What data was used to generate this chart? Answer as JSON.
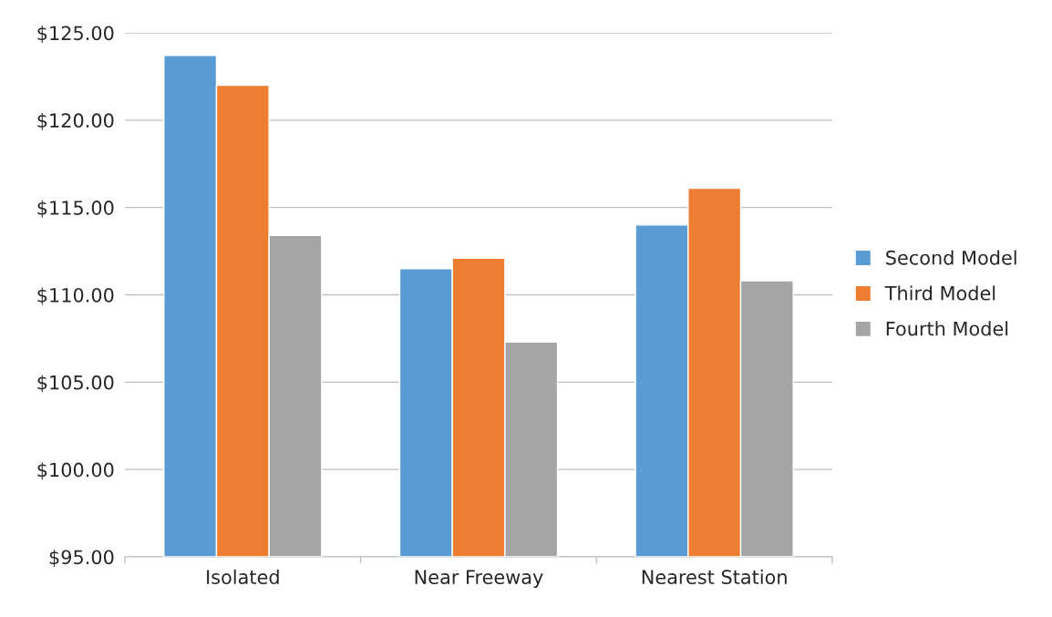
{
  "chart_data": {
    "type": "bar",
    "categories": [
      "Isolated",
      "Near Freeway",
      "Nearest Station"
    ],
    "series": [
      {
        "name": "Second Model",
        "color": "#5b9bd5",
        "values": [
          123.7,
          111.5,
          114.0
        ]
      },
      {
        "name": "Third Model",
        "color": "#ed7d31",
        "values": [
          122.0,
          112.1,
          116.1
        ]
      },
      {
        "name": "Fourth Model",
        "color": "#a5a5a5",
        "values": [
          113.4,
          107.3,
          110.8
        ]
      }
    ],
    "ylim": [
      95,
      125
    ],
    "yticks": [
      {
        "value": 95,
        "label": "$95.00"
      },
      {
        "value": 100,
        "label": "$100.00"
      },
      {
        "value": 105,
        "label": "$105.00"
      },
      {
        "value": 110,
        "label": "$110.00"
      },
      {
        "value": 115,
        "label": "$115.00"
      },
      {
        "value": 120,
        "label": "$120.00"
      },
      {
        "value": 125,
        "label": "$125.00"
      }
    ],
    "grid": "y",
    "legend": "right"
  }
}
